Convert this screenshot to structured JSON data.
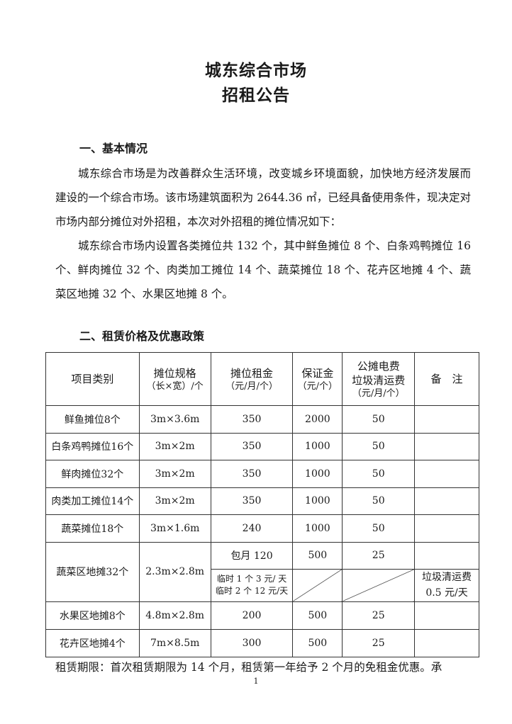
{
  "title": [
    "城东综合市场",
    "招租公告"
  ],
  "section1": {
    "heading": "一、基本情况",
    "paragraphs": [
      "城东综合市场是为改善群众生活环境，改变城乡环境面貌，加快地方经济发展而建设的一个综合市场。该市场建筑面积为 2644.36 ㎡，已经具备使用条件，现决定对市场内部分摊位对外招租，本次对外招租的摊位情况如下：",
      "城东综合市场内设置各类摊位共 132 个，其中鲜鱼摊位 8 个、白条鸡鸭摊位 16 个、鲜肉摊位 32 个、肉类加工摊位 14 个、蔬菜摊位 18 个、花卉区地摊 4 个、蔬菜区地摊 32 个、水果区地摊 8 个。"
    ]
  },
  "section2": {
    "heading": "二、租赁价格及优惠政策"
  },
  "table": {
    "headers": [
      [
        "项目类别"
      ],
      [
        "摊位规格",
        "（长×宽）/个"
      ],
      [
        "摊位租金",
        "（元/月/个）"
      ],
      [
        "保证金",
        "（元/个）"
      ],
      [
        "公摊电费",
        "垃圾清运费",
        "（元/月/个）"
      ],
      [
        "备　注"
      ]
    ],
    "rows": [
      [
        "鲜鱼摊位8个",
        "3m×3.6m",
        "350",
        "2000",
        "50",
        ""
      ],
      [
        "白条鸡鸭摊位16个",
        "3m×2m",
        "350",
        "1000",
        "50",
        ""
      ],
      [
        "鲜肉摊位32个",
        "3m×2m",
        "350",
        "1000",
        "50",
        ""
      ],
      [
        "肉类加工摊位14个",
        "3m×2m",
        "350",
        "1000",
        "50",
        ""
      ],
      [
        "蔬菜摊位18个",
        "3m×1.6m",
        "240",
        "1000",
        "50",
        ""
      ]
    ],
    "special": {
      "name": "蔬菜区地摊32个",
      "size": "2.3m×2.8m",
      "monthly": "包月 120",
      "deposit": "500",
      "fee": "25",
      "temp1": "临时 1 个 3 元/ 天",
      "temp2": "临时 2 个 12 元/天",
      "note1": "垃圾清运费",
      "note2": "0.5 元/天"
    },
    "rows2": [
      [
        "水果区地摊8个",
        "4.8m×2.8m",
        "200",
        "500",
        "25",
        ""
      ],
      [
        "花卉区地摊4个",
        "7m×8.5m",
        "300",
        "500",
        "25",
        ""
      ]
    ]
  },
  "footer": "租赁期限：首次租赁期限为 14 个月，租赁第一年给予 2 个月的免租金优惠。承",
  "page_number": "1"
}
